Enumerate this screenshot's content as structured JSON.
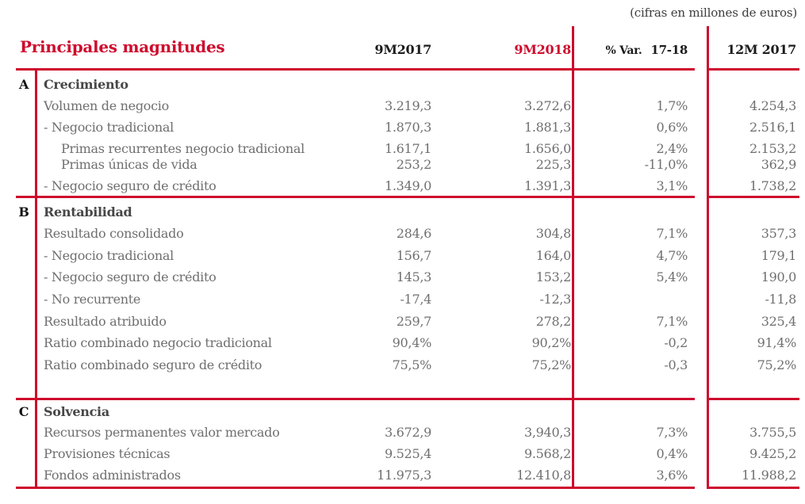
{
  "note": "(cifras en millones de euros)",
  "header": {
    "title": "Principales magnitudes",
    "col_9m2017": "9M2017",
    "col_9m2018": "9M2018",
    "col_var_label": "% Var.",
    "col_var_range": "17-18",
    "col_12m2017": "12M 2017"
  },
  "colors": {
    "accent_red": "#CE0B2D",
    "label_gray": "#6f6f6f",
    "header_black": "#1c1c1c"
  },
  "sections": [
    {
      "letter": "A",
      "title": "Crecimiento",
      "rows": [
        {
          "label": "Volumen de negocio",
          "indent": 0,
          "v1": "3.219,3",
          "v2": "3.272,6",
          "var": "1,7%",
          "v3": "4.254,3"
        },
        {
          "label": "- Negocio tradicional",
          "indent": 0,
          "v1": "1.870,3",
          "v2": "1.881,3",
          "var": "0,6%",
          "v3": "2.516,1"
        },
        {
          "label": "Primas recurrentes negocio tradicional",
          "indent": 1,
          "v1": "1.617,1",
          "v2": "1.656,0",
          "var": "2,4%",
          "v3": "2.153,2"
        },
        {
          "label": "Primas únicas de vida",
          "indent": 1,
          "v1": "253,2",
          "v2": "225,3",
          "var": "-11,0%",
          "v3": "362,9"
        },
        {
          "label": "- Negocio seguro de crédito",
          "indent": 0,
          "v1": "1.349,0",
          "v2": "1.391,3",
          "var": "3,1%",
          "v3": "1.738,2"
        }
      ]
    },
    {
      "letter": "B",
      "title": "Rentabilidad",
      "rows": [
        {
          "label": "Resultado consolidado",
          "indent": 0,
          "v1": "284,6",
          "v2": "304,8",
          "var": "7,1%",
          "v3": "357,3"
        },
        {
          "label": "- Negocio tradicional",
          "indent": 0,
          "v1": "156,7",
          "v2": "164,0",
          "var": "4,7%",
          "v3": "179,1"
        },
        {
          "label": "- Negocio seguro de crédito",
          "indent": 0,
          "v1": "145,3",
          "v2": "153,2",
          "var": "5,4%",
          "v3": "190,0"
        },
        {
          "label": "- No recurrente",
          "indent": 0,
          "v1": "-17,4",
          "v2": "-12,3",
          "var": "",
          "v3": "-11,8"
        },
        {
          "label": "Resultado atribuido",
          "indent": 0,
          "v1": "259,7",
          "v2": "278,2",
          "var": "7,1%",
          "v3": "325,4"
        },
        {
          "label": "Ratio combinado negocio tradicional",
          "indent": 0,
          "v1": "90,4%",
          "v2": "90,2%",
          "var": "-0,2",
          "v3": "91,4%"
        },
        {
          "label": "Ratio combinado seguro de crédito",
          "indent": 0,
          "v1": "75,5%",
          "v2": "75,2%",
          "var": "-0,3",
          "v3": "75,2%"
        }
      ]
    },
    {
      "letter": "C",
      "title": "Solvencia",
      "rows": [
        {
          "label": "Recursos permanentes valor mercado",
          "indent": 0,
          "v1": "3.672,9",
          "v2": "3,940,3",
          "var": "7,3%",
          "v3": "3.755,5"
        },
        {
          "label": "Provisiones técnicas",
          "indent": 0,
          "v1": "9.525,4",
          "v2": "9.568,2",
          "var": "0,4%",
          "v3": "9.425,2"
        },
        {
          "label": "Fondos administrados",
          "indent": 0,
          "v1": "11.975,3",
          "v2": "12.410,8",
          "var": "3,6%",
          "v3": "11.988,2"
        }
      ]
    }
  ]
}
